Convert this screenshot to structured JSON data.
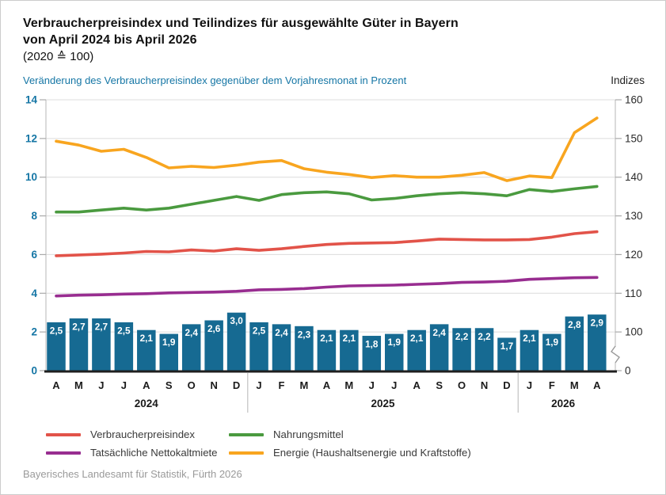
{
  "header": {
    "title_line1": "Verbraucherpreisindex und Teilindizes für ausgewählte Güter in Bayern",
    "title_line2": "von April 2024 bis April 2026",
    "subtitle": "(2020 ≙ 100)"
  },
  "footer": {
    "source": "Bayerisches Landesamt für Statistik, Fürth 2026"
  },
  "colors": {
    "bar": "#166a92",
    "vpi": "#e25349",
    "miete": "#982d90",
    "nahrung": "#4a9a3f",
    "energie": "#f8a51f",
    "blue_text": "#1576a5",
    "grid": "#dcdcdc",
    "axis_line": "#c3c3c3",
    "tick": "#aaaaaa",
    "dark_axis": "#1f1f1f",
    "dark_text": "#1a1a1a"
  },
  "legend": {
    "items": [
      {
        "label": "Verbraucherpreisindex",
        "color": "#e25349"
      },
      {
        "label": "Nahrungsmittel",
        "color": "#4a9a3f"
      },
      {
        "label": "Tatsächliche Nettokaltmiete",
        "color": "#982d90"
      },
      {
        "label": "Energie (Haushaltsenergie und Kraftstoffe)",
        "color": "#f8a51f"
      }
    ]
  },
  "chart_data": {
    "type": "combo-bar-line",
    "title": "Verbraucherpreisindex und Teilindizes für ausgewählte Güter in Bayern von April 2024 bis April 2026 (2020 ≙ 100)",
    "left_axis": {
      "title": "Veränderung des Verbraucherpreisindex gegenüber dem Vorjahresmonat in Prozent",
      "ticks": [
        0,
        2,
        4,
        6,
        8,
        10,
        12,
        14
      ],
      "range": [
        0,
        14
      ],
      "unit": "percent"
    },
    "right_axis": {
      "title": "Indizes",
      "ticks": [
        0,
        100,
        110,
        120,
        130,
        140,
        150,
        160
      ],
      "range_upper": [
        100,
        160
      ],
      "has_break": true
    },
    "x_months": [
      "A",
      "M",
      "J",
      "J",
      "A",
      "S",
      "O",
      "N",
      "D",
      "J",
      "F",
      "M",
      "A",
      "M",
      "J",
      "J",
      "A",
      "S",
      "O",
      "N",
      "D",
      "J",
      "F",
      "M",
      "A"
    ],
    "year_groups": [
      {
        "label": "2024",
        "months": 9
      },
      {
        "label": "2025",
        "months": 12
      },
      {
        "label": "2026",
        "months": 4
      }
    ],
    "bars": {
      "name": "Veränderung des Verbraucherpreisindex gegenüber dem Vorjahresmonat in Prozent",
      "axis": "left",
      "values": [
        2.5,
        2.7,
        2.7,
        2.5,
        2.1,
        1.9,
        2.4,
        2.6,
        3.0,
        2.5,
        2.4,
        2.3,
        2.1,
        2.1,
        1.8,
        1.9,
        2.1,
        2.4,
        2.2,
        2.2,
        1.7,
        2.1,
        1.9,
        2.8,
        2.9
      ],
      "labels": [
        "2,5",
        "2,7",
        "2,7",
        "2,5",
        "2,1",
        "1,9",
        "2,4",
        "2,6",
        "3,0",
        "2,5",
        "2,4",
        "2,3",
        "2,1",
        "2,1",
        "1,8",
        "1,9",
        "2,1",
        "2,4",
        "2,2",
        "2,2",
        "1,7",
        "2,1",
        "1,9",
        "2,8",
        "2,9"
      ]
    },
    "series": [
      {
        "name": "Verbraucherpreisindex",
        "axis": "right",
        "color": "#e25349",
        "values": [
          119.7,
          119.9,
          120.1,
          120.4,
          120.8,
          120.7,
          121.2,
          120.9,
          121.5,
          121.1,
          121.5,
          122.1,
          122.6,
          122.9,
          123.0,
          123.1,
          123.5,
          124.0,
          123.9,
          123.8,
          123.8,
          123.9,
          124.5,
          125.4,
          125.9
        ]
      },
      {
        "name": "Tatsächliche Nettokaltmiete",
        "axis": "right",
        "color": "#982d90",
        "values": [
          109.3,
          109.5,
          109.6,
          109.8,
          109.9,
          110.1,
          110.2,
          110.3,
          110.5,
          110.9,
          111.0,
          111.2,
          111.6,
          111.9,
          112.0,
          112.1,
          112.3,
          112.5,
          112.8,
          112.9,
          113.1,
          113.6,
          113.8,
          114.0,
          114.1
        ]
      },
      {
        "name": "Nahrungsmittel",
        "axis": "right",
        "color": "#4a9a3f",
        "values": [
          131.0,
          131.0,
          131.5,
          132.0,
          131.5,
          132.0,
          133.0,
          134.0,
          135.0,
          134.0,
          135.5,
          136.0,
          136.2,
          135.7,
          134.1,
          134.5,
          135.2,
          135.7,
          136.0,
          135.7,
          135.2,
          136.8,
          136.3,
          137.0,
          137.6
        ]
      },
      {
        "name": "Energie (Haushaltsenergie und Kraftstoffe)",
        "axis": "right",
        "color": "#f8a51f",
        "values": [
          149.3,
          148.3,
          146.7,
          147.2,
          145.1,
          142.4,
          142.8,
          142.5,
          143.1,
          143.9,
          144.3,
          142.2,
          141.3,
          140.7,
          139.9,
          140.4,
          140.0,
          140.0,
          140.5,
          141.2,
          139.1,
          140.3,
          139.9,
          151.5,
          155.3
        ]
      }
    ]
  }
}
